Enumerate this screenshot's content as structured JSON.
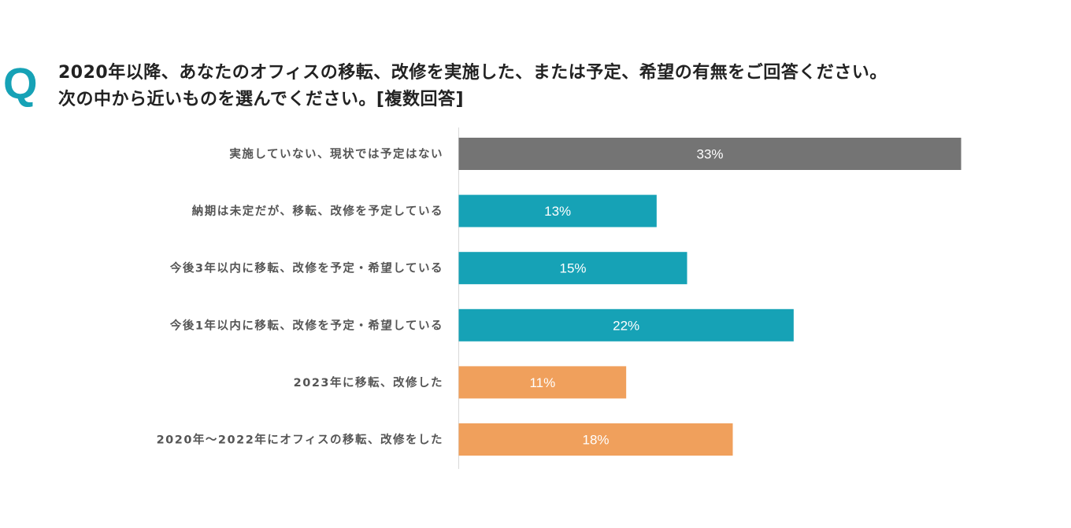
{
  "question": {
    "marker": "Q",
    "line1": "2020年以降、あなたのオフィスの移転、改修を実施した、または予定、希望の有無をご回答ください。",
    "line2": "次の中から近いものを選んでください。[複数回答]"
  },
  "chart_data": {
    "type": "bar",
    "orientation": "horizontal",
    "title": "2020年以降、あなたのオフィスの移転、改修を実施した、または予定、希望の有無をご回答ください。次の中から近いものを選んでください。[複数回答]",
    "categories": [
      "実施していない、現状では予定はない",
      "納期は未定だが、移転、改修を予定している",
      "今後3年以内に移転、改修を予定・希望している",
      "今後1年以内に移転、改修を予定・希望している",
      "2023年に移転、改修した",
      "2020年〜2022年にオフィスの移転、改修をした"
    ],
    "values": [
      33,
      13,
      15,
      22,
      11,
      18
    ],
    "labels": [
      "33%",
      "13%",
      "15%",
      "22%",
      "11%",
      "18%"
    ],
    "colors": [
      "#747474",
      "#16a2b6",
      "#16a2b6",
      "#16a2b6",
      "#f0a05c",
      "#f0a05c"
    ],
    "unit": "%",
    "xlim": [
      0,
      33
    ],
    "xlabel": "",
    "ylabel": "",
    "grid": false,
    "legend": "none"
  }
}
